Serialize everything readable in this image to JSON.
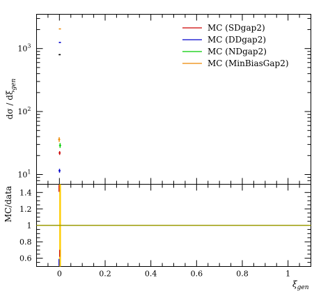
{
  "chart_data": [
    {
      "type": "scatter",
      "panel": "main",
      "ylabel_main": "dσ / dξ",
      "ylabel_sub": "gen",
      "yscale": "log",
      "ylim": [
        7,
        3500
      ],
      "xlim": [
        -0.1,
        1.1
      ],
      "yticks": [
        {
          "v": 10,
          "base": "10",
          "exp": "1"
        },
        {
          "v": 100,
          "base": "10",
          "exp": "2"
        },
        {
          "v": 1000,
          "base": "10",
          "exp": "3"
        }
      ],
      "grid": false,
      "legend_placement": "top-right",
      "series": [
        {
          "name": "MC (SDgap2)",
          "color": "#cc0000",
          "points": [
            {
              "x": 0.001,
              "y": 22,
              "err": 1.5
            }
          ]
        },
        {
          "name": "MC (DDgap2)",
          "color": "#0000cc",
          "points": [
            {
              "x": 0.0005,
              "y": 11.5,
              "err": 0.8
            },
            {
              "x": 0.002,
              "y": 1250,
              "err": 25
            }
          ]
        },
        {
          "name": "MC (NDgap2)",
          "color": "#00cc00",
          "points": [
            {
              "x": 0.003,
              "y": 29,
              "err": 2.5
            }
          ]
        },
        {
          "name": "MC (MinBiasGap2)",
          "color": "#ee8800",
          "points": [
            {
              "x": -0.001,
              "y": 36,
              "err": 3
            },
            {
              "x": 0.002,
              "y": 2050,
              "err": 30
            }
          ]
        },
        {
          "name": "",
          "color": "#000000",
          "points": [
            {
              "x": 0.001,
              "y": 800,
              "err": 15
            }
          ]
        }
      ]
    },
    {
      "type": "line",
      "panel": "ratio",
      "ylabel": "MC/data",
      "xlabel_main": "ξ",
      "xlabel_sub": "gen",
      "xlim": [
        -0.1,
        1.1
      ],
      "ylim": [
        0.5,
        1.5
      ],
      "xticks": [
        {
          "v": 0,
          "label": "0"
        },
        {
          "v": 0.2,
          "label": "0.2"
        },
        {
          "v": 0.4,
          "label": "0.4"
        },
        {
          "v": 0.6,
          "label": "0.6"
        },
        {
          "v": 0.8,
          "label": "0.8"
        },
        {
          "v": 1.0,
          "label": "1"
        }
      ],
      "yticks": [
        {
          "v": 0.6,
          "label": "0.6"
        },
        {
          "v": 0.8,
          "label": "0.8"
        },
        {
          "v": 1.0,
          "label": "1"
        },
        {
          "v": 1.2,
          "label": "1.2"
        },
        {
          "v": 1.4,
          "label": "1.4"
        }
      ],
      "reference_line": {
        "y": 1.0,
        "color": "#999900"
      },
      "band": {
        "x": 0.003,
        "ylow": 0.5,
        "yhigh": 1.5,
        "color": "#ffcc00"
      },
      "markers": [
        {
          "color": "#cc0000",
          "x": -0.002,
          "y": 1.45
        },
        {
          "color": "#0000cc",
          "x": -0.002,
          "y": 0.55
        },
        {
          "color": "#cc0000",
          "x": 0.001,
          "y": 0.66
        }
      ]
    }
  ]
}
